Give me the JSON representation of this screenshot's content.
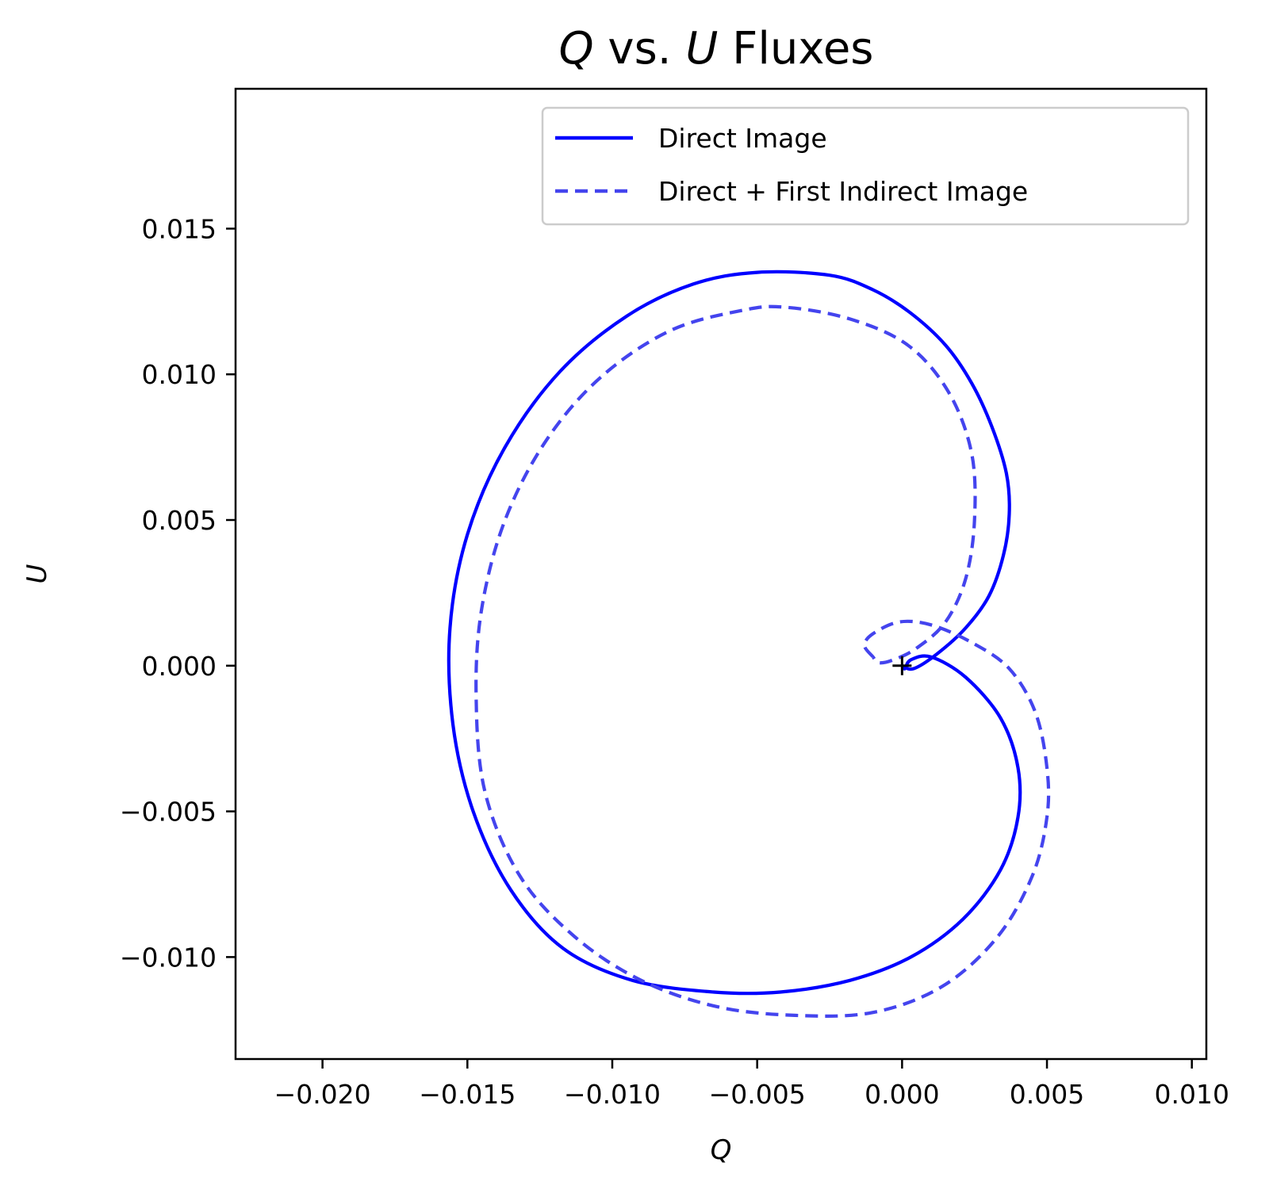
{
  "chart_data": {
    "type": "line",
    "title": {
      "q": "Q",
      "vs": " vs. ",
      "u": "U",
      "rest": " Fluxes"
    },
    "xlabel": "Q",
    "ylabel": "U",
    "xlim": [
      -0.023,
      0.0105
    ],
    "ylim": [
      -0.0135,
      0.0198
    ],
    "grid": false,
    "legend_placement": "top-right",
    "x_ticks": [
      {
        "value": -0.02,
        "label": "−0.020"
      },
      {
        "value": -0.015,
        "label": "−0.015"
      },
      {
        "value": -0.01,
        "label": "−0.010"
      },
      {
        "value": -0.005,
        "label": "−0.005"
      },
      {
        "value": 0.0,
        "label": "0.000"
      },
      {
        "value": 0.005,
        "label": "0.005"
      },
      {
        "value": 0.01,
        "label": "0.010"
      }
    ],
    "y_ticks": [
      {
        "value": -0.01,
        "label": "−0.010"
      },
      {
        "value": -0.005,
        "label": "−0.005"
      },
      {
        "value": 0.0,
        "label": "0.000"
      },
      {
        "value": 0.005,
        "label": "0.005"
      },
      {
        "value": 0.01,
        "label": "0.010"
      },
      {
        "value": 0.015,
        "label": "0.015"
      }
    ],
    "series": [
      {
        "name": "Direct Image",
        "style": "solid",
        "color": "#0000ff",
        "points": [
          [
            0.0,
            0.0
          ],
          [
            0.0004,
            -0.0001
          ],
          [
            0.0012,
            0.0004
          ],
          [
            0.0022,
            0.0013
          ],
          [
            0.003,
            0.0024
          ],
          [
            0.0035,
            0.0038
          ],
          [
            0.0037,
            0.0052
          ],
          [
            0.0036,
            0.0066
          ],
          [
            0.0031,
            0.0082
          ],
          [
            0.0024,
            0.0097
          ],
          [
            0.0015,
            0.011
          ],
          [
            0.0003,
            0.0121
          ],
          [
            -0.001,
            0.0129
          ],
          [
            -0.0025,
            0.0134
          ],
          [
            -0.005,
            0.0135
          ],
          [
            -0.0072,
            0.0131
          ],
          [
            -0.0095,
            0.012
          ],
          [
            -0.0118,
            0.0101
          ],
          [
            -0.0137,
            0.0075
          ],
          [
            -0.015,
            0.0045
          ],
          [
            -0.0156,
            0.0013
          ],
          [
            -0.0155,
            -0.002
          ],
          [
            -0.0148,
            -0.005
          ],
          [
            -0.0135,
            -0.0077
          ],
          [
            -0.0117,
            -0.0097
          ],
          [
            -0.0093,
            -0.0108
          ],
          [
            -0.0065,
            -0.0112
          ],
          [
            -0.0042,
            -0.0112
          ],
          [
            -0.0018,
            -0.0108
          ],
          [
            0.0003,
            -0.01
          ],
          [
            0.0021,
            -0.0087
          ],
          [
            0.0034,
            -0.007
          ],
          [
            0.004,
            -0.0052
          ],
          [
            0.004,
            -0.0035
          ],
          [
            0.0034,
            -0.0018
          ],
          [
            0.0022,
            -0.0004
          ],
          [
            0.001,
            0.0003
          ],
          [
            0.0003,
            0.0002
          ],
          [
            0.0001,
            -0.0001
          ],
          [
            0.0,
            0.0
          ]
        ]
      },
      {
        "name": "Direct + First Indirect Image",
        "style": "dashed",
        "color": "#4444ee",
        "points": [
          [
            -0.001,
            0.0003
          ],
          [
            -0.0013,
            0.0007
          ],
          [
            -0.001,
            0.0011
          ],
          [
            -0.0001,
            0.0015
          ],
          [
            0.001,
            0.0014
          ],
          [
            0.0024,
            0.0008
          ],
          [
            0.0037,
            -0.0001
          ],
          [
            0.0046,
            -0.0016
          ],
          [
            0.005,
            -0.0035
          ],
          [
            0.005,
            -0.0052
          ],
          [
            0.0045,
            -0.0072
          ],
          [
            0.0033,
            -0.0093
          ],
          [
            0.0014,
            -0.011
          ],
          [
            -0.001,
            -0.0119
          ],
          [
            -0.0037,
            -0.012
          ],
          [
            -0.0064,
            -0.0117
          ],
          [
            -0.009,
            -0.0108
          ],
          [
            -0.0113,
            -0.0093
          ],
          [
            -0.0132,
            -0.0072
          ],
          [
            -0.0144,
            -0.0043
          ],
          [
            -0.0147,
            -0.001
          ],
          [
            -0.0145,
            0.002
          ],
          [
            -0.0137,
            0.005
          ],
          [
            -0.0123,
            0.0077
          ],
          [
            -0.0104,
            0.0099
          ],
          [
            -0.008,
            0.0115
          ],
          [
            -0.0055,
            0.0122
          ],
          [
            -0.004,
            0.0123
          ],
          [
            -0.0018,
            0.0119
          ],
          [
            0.0002,
            0.011
          ],
          [
            0.0016,
            0.0094
          ],
          [
            0.0024,
            0.0073
          ],
          [
            0.0025,
            0.005
          ],
          [
            0.0022,
            0.003
          ],
          [
            0.0015,
            0.0015
          ],
          [
            0.0005,
            0.0006
          ],
          [
            -0.0003,
            0.0002
          ],
          [
            -0.0008,
            0.0001
          ],
          [
            -0.001,
            0.0003
          ]
        ]
      }
    ],
    "marker": {
      "symbol": "+",
      "x": 0.0,
      "y": 0.0,
      "color": "#000000"
    }
  }
}
